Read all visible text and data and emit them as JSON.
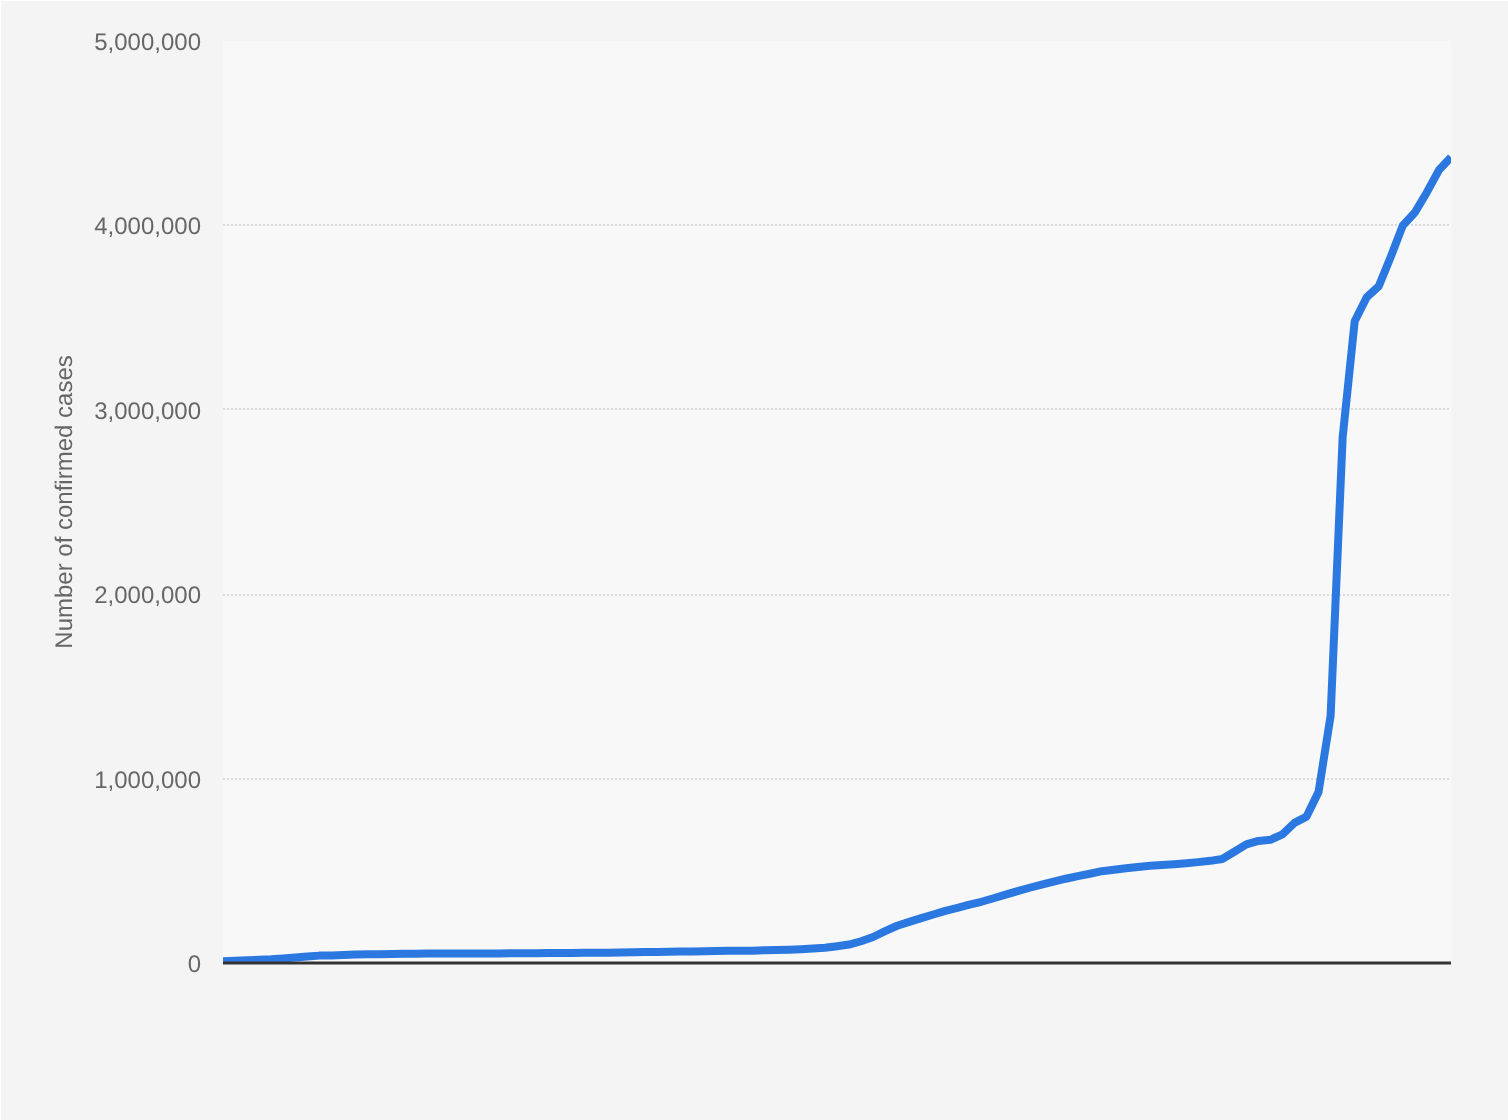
{
  "chart_data": {
    "type": "line",
    "ylabel": "Number of confirmed cases",
    "categories": [
      null,
      null,
      null,
      null,
      null,
      null,
      null,
      null,
      null,
      null,
      null,
      null,
      null,
      null,
      null,
      null,
      null,
      null,
      null,
      null,
      null,
      null,
      null,
      null,
      null,
      null,
      null,
      null,
      null,
      null,
      null,
      null,
      null,
      null,
      null,
      null,
      null,
      null,
      null,
      null,
      null,
      null,
      null,
      null,
      null,
      null,
      null,
      null,
      null,
      null,
      null,
      null,
      null,
      null,
      null,
      null,
      null,
      null,
      null,
      null,
      null,
      null,
      null,
      null,
      null,
      null,
      null,
      null,
      null,
      null,
      null,
      null,
      null,
      null,
      null,
      null,
      null,
      null,
      null,
      null,
      null,
      null,
      null,
      null,
      null,
      null,
      null,
      null,
      null,
      null,
      null,
      null,
      null,
      null,
      null,
      null,
      null,
      null,
      null,
      null,
      null,
      null,
      null
    ],
    "series": [
      {
        "color": "#2a78e0",
        "values": [
          10000,
          12500,
          15000,
          17500,
          20000,
          25000,
          30000,
          35000,
          40000,
          41000,
          43000,
          46000,
          47000,
          48000,
          49000,
          50000,
          50000,
          51000,
          51000,
          51000,
          52000,
          52000,
          52000,
          52000,
          53000,
          53000,
          53000,
          54000,
          54000,
          54000,
          55000,
          55000,
          55000,
          57000,
          58000,
          59000,
          60000,
          61000,
          62000,
          63000,
          64000,
          65000,
          66000,
          66000,
          67000,
          69000,
          70000,
          72000,
          75000,
          79000,
          83000,
          91000,
          100000,
          118000,
          141000,
          173000,
          202000,
          223000,
          243000,
          263000,
          283000,
          299000,
          316000,
          332000,
          351000,
          371000,
          390000,
          408000,
          425000,
          441000,
          457000,
          471000,
          484000,
          498000,
          506000,
          514000,
          521000,
          527000,
          532000,
          536000,
          541000,
          547000,
          554000,
          564000,
          603000,
          643000,
          662000,
          668000,
          698000,
          760000,
          794000,
          928000,
          1340000,
          2850000,
          3480000,
          3610000,
          3670000,
          3830000,
          4000000,
          4070000,
          4180000,
          4300000,
          4370000
        ]
      }
    ],
    "ylim": [
      0,
      5000000
    ],
    "yticks": [
      {
        "value": 0,
        "label": "0"
      },
      {
        "value": 1000000,
        "label": "1,000,000"
      },
      {
        "value": 2000000,
        "label": "2,000,000"
      },
      {
        "value": 3000000,
        "label": "3,000,000"
      },
      {
        "value": 4000000,
        "label": "4,000,000"
      },
      {
        "value": 5000000,
        "label": "5,000,000"
      }
    ],
    "grid": "y",
    "tick_labels": "y"
  }
}
